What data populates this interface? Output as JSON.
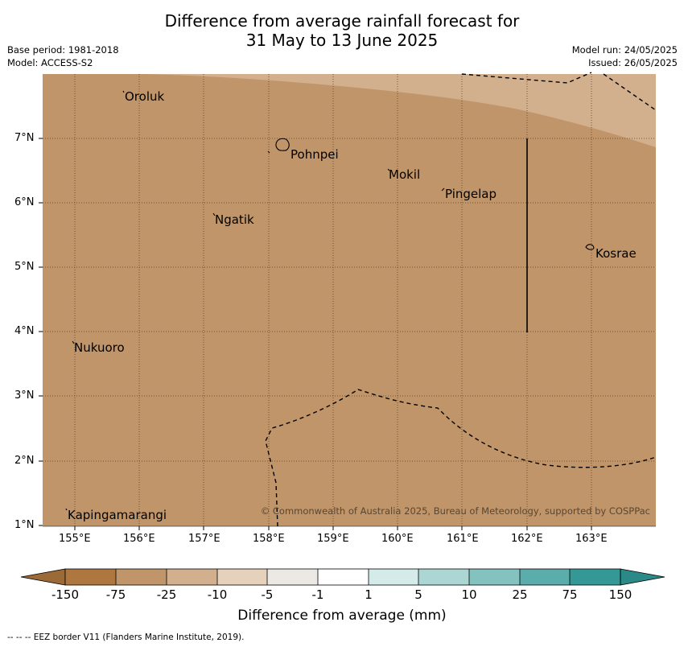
{
  "title": {
    "line1": "Difference from average rainfall forecast for",
    "line2": "31 May to 13 June 2025"
  },
  "meta": {
    "base_period": "Base period: 1981-2018",
    "model": "Model: ACCESS-S2",
    "model_run": "Model run: 24/05/2025",
    "issued": "Issued: 26/05/2025"
  },
  "axes": {
    "lon_ticks": [
      "155°E",
      "156°E",
      "157°E",
      "158°E",
      "159°E",
      "160°E",
      "161°E",
      "162°E",
      "163°E"
    ],
    "lat_ticks": [
      "7°N",
      "6°N",
      "5°N",
      "4°N",
      "3°N",
      "2°N",
      "1°N"
    ]
  },
  "places": {
    "oroluk": "Oroluk",
    "pohnpei": "Pohnpei",
    "mokil": "Mokil",
    "pingelap": "Pingelap",
    "ngatik": "Ngatik",
    "kosrae": "Kosrae",
    "nukuoro": "Nukuoro",
    "kapingamarangi": "Kapingamarangi"
  },
  "copyright": "© Commonwealth of Australia 2025, Bureau of Meteorology, supported by COSPPac",
  "colorbar": {
    "labels": [
      "-150",
      "-75",
      "-25",
      "-10",
      "-5",
      "-1",
      "1",
      "5",
      "10",
      "25",
      "75",
      "150"
    ],
    "colors": [
      "#ad773f",
      "#c0956a",
      "#d2b08d",
      "#e6d1bc",
      "#ece8e3",
      "#ffffff",
      "#d4ebe9",
      "#acd6d4",
      "#84c2c0",
      "#5aadab",
      "#349996"
    ],
    "end_low": "#9c6a36",
    "end_high": "#2b8a87",
    "title": "Difference from average (mm)"
  },
  "map_colors": {
    "main": "#c0956a",
    "light": "#d2b08d"
  },
  "footnote": "--  --  -- EEZ border V11 (Flanders Marine Institute, 2019)."
}
